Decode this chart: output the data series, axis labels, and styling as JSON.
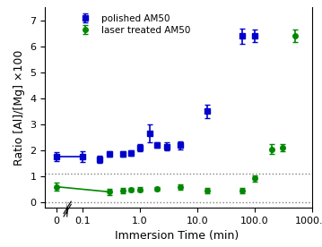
{
  "title": "",
  "xlabel": "Immersion Time (min)",
  "ylabel": "Ratio [Al]/[Mg] ×100",
  "xlim_log": [
    0.055,
    1000
  ],
  "ylim": [
    -0.2,
    7.5
  ],
  "dotted_line_y1": 1.1,
  "dotted_line_y2": 0.0,
  "blue_series": {
    "label": "polished AM50",
    "color": "#0000cc",
    "marker": "s",
    "markersize": 4,
    "x_zero": [
      0.0
    ],
    "y_zero": [
      1.75
    ],
    "yerr_zero": [
      0.18
    ],
    "x": [
      0.1,
      0.2,
      0.3,
      0.5,
      0.7,
      1.0,
      1.5,
      2.0,
      3.0,
      5.0,
      15.0,
      60.0,
      100.0
    ],
    "y": [
      1.75,
      1.65,
      1.85,
      1.85,
      1.9,
      2.1,
      2.65,
      2.2,
      2.15,
      2.2,
      3.5,
      6.4,
      6.4
    ],
    "yerr": [
      0.2,
      0.15,
      0.1,
      0.1,
      0.1,
      0.15,
      0.35,
      0.1,
      0.15,
      0.15,
      0.25,
      0.3,
      0.25
    ]
  },
  "green_series": {
    "label": "laser treated AM50",
    "color": "#008800",
    "marker": "o",
    "markersize": 4,
    "x_zero": [
      0.0
    ],
    "y_zero": [
      0.6
    ],
    "yerr_zero": [
      0.15
    ],
    "x": [
      0.3,
      0.5,
      0.7,
      1.0,
      2.0,
      5.0,
      15.0,
      60.0,
      100.0,
      200.0,
      300.0,
      500.0
    ],
    "y": [
      0.4,
      0.45,
      0.48,
      0.5,
      0.52,
      0.58,
      0.45,
      0.45,
      0.92,
      2.05,
      2.1,
      6.4
    ],
    "yerr": [
      0.12,
      0.1,
      0.08,
      0.08,
      0.08,
      0.1,
      0.1,
      0.1,
      0.12,
      0.2,
      0.15,
      0.25
    ]
  },
  "x_ticks": [
    0.1,
    1,
    10,
    100,
    1000
  ],
  "y_ticks": [
    0,
    1,
    2,
    3,
    4,
    5,
    6,
    7
  ],
  "background_color": "#ffffff",
  "legend_fontsize": 7.5,
  "axis_fontsize": 9,
  "tick_fontsize": 8,
  "figsize": [
    3.59,
    2.76
  ],
  "dpi": 100
}
